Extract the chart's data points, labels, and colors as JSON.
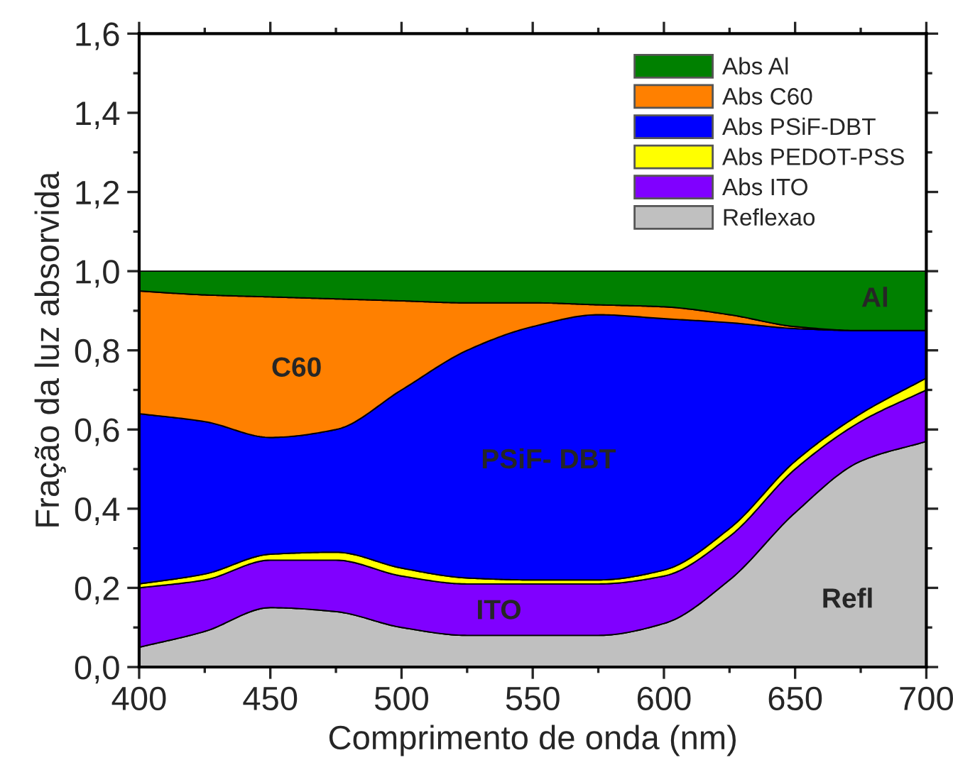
{
  "chart_data": {
    "type": "area",
    "stacked": true,
    "xlabel": "Comprimento de onda (nm)",
    "ylabel": "Fração da luz absorvida",
    "x": [
      400,
      425,
      450,
      475,
      500,
      525,
      550,
      575,
      600,
      625,
      650,
      675,
      700
    ],
    "series": [
      {
        "name": "Reflexao",
        "color": "#c0c0c0",
        "values": [
          0.05,
          0.09,
          0.15,
          0.14,
          0.1,
          0.08,
          0.08,
          0.08,
          0.11,
          0.22,
          0.39,
          0.52,
          0.57
        ]
      },
      {
        "name": "Abs ITO",
        "color": "#8000ff",
        "values": [
          0.15,
          0.13,
          0.12,
          0.13,
          0.13,
          0.13,
          0.13,
          0.13,
          0.12,
          0.11,
          0.11,
          0.1,
          0.13
        ]
      },
      {
        "name": "Abs PEDOT-PSS",
        "color": "#ffff00",
        "values": [
          0.01,
          0.015,
          0.015,
          0.02,
          0.02,
          0.015,
          0.01,
          0.01,
          0.015,
          0.02,
          0.02,
          0.02,
          0.03
        ]
      },
      {
        "name": "Abs PSiF-DBT",
        "color": "#0000ff",
        "values": [
          0.43,
          0.385,
          0.295,
          0.31,
          0.45,
          0.575,
          0.64,
          0.67,
          0.635,
          0.52,
          0.335,
          0.21,
          0.12
        ]
      },
      {
        "name": "Abs C60",
        "color": "#ff8000",
        "values": [
          0.31,
          0.32,
          0.355,
          0.33,
          0.225,
          0.12,
          0.06,
          0.025,
          0.03,
          0.02,
          0.005,
          0.0,
          0.0
        ]
      },
      {
        "name": "Abs Al",
        "color": "#008000",
        "values": [
          0.05,
          0.06,
          0.065,
          0.07,
          0.075,
          0.08,
          0.08,
          0.085,
          0.09,
          0.11,
          0.14,
          0.15,
          0.15
        ]
      }
    ],
    "annotations": [
      "C60",
      "PSiF- DBT",
      "ITO",
      "Refl",
      "Al"
    ],
    "xlim": [
      400,
      700
    ],
    "xticks": [
      400,
      450,
      500,
      550,
      600,
      650,
      700
    ],
    "ylim": [
      0,
      1.6
    ],
    "yticks": [
      {
        "value": 0,
        "label": "0,0"
      },
      {
        "value": 0.2,
        "label": "0,2"
      },
      {
        "value": 0.4,
        "label": "0,4"
      },
      {
        "value": 0.6,
        "label": "0,6"
      },
      {
        "value": 0.8,
        "label": "0,8"
      },
      {
        "value": 1.0,
        "label": "1,0"
      },
      {
        "value": 1.2,
        "label": "1,2"
      },
      {
        "value": 1.4,
        "label": "1,4"
      },
      {
        "value": 1.6,
        "label": "1,6"
      }
    ],
    "legend": "top right",
    "grid": false
  }
}
